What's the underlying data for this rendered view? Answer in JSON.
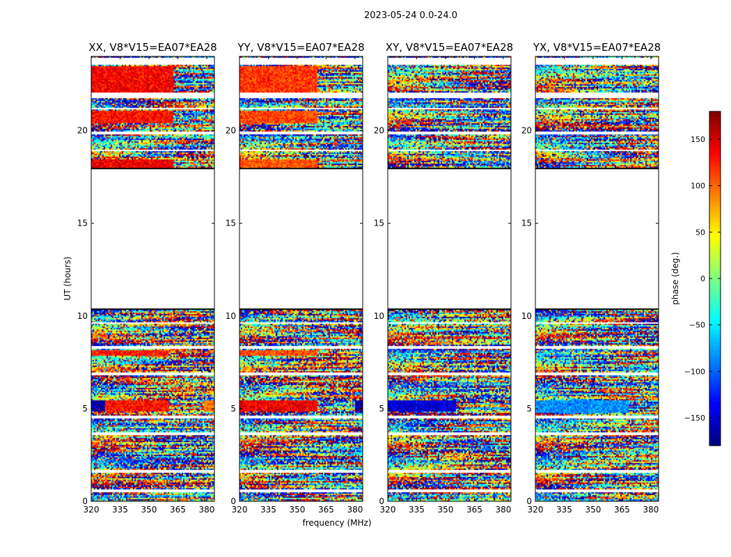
{
  "chart_data": {
    "type": "heatmap",
    "suptitle": "2023-05-24 0.0-24.0",
    "xlabel": "frequency (MHz)",
    "ylabel": "UT (hours)",
    "xlim": [
      320,
      384
    ],
    "ylim": [
      0,
      24
    ],
    "xticks": [
      320,
      335,
      350,
      365,
      380
    ],
    "yticks": [
      0,
      5,
      10,
      15,
      20
    ],
    "colorbar": {
      "label": "phase (deg.)",
      "range": [
        -180,
        180
      ],
      "ticks": [
        150,
        100,
        50,
        0,
        -50,
        -100,
        -150
      ],
      "tick_labels": [
        "150",
        "100",
        "50",
        "0",
        "−50",
        "−100",
        "−150"
      ],
      "colormap": "jet"
    },
    "data_gaps_hours": [
      [
        10.4,
        18.0
      ]
    ],
    "flagged_bands_hours": [
      [
        0.5,
        0.65
      ],
      [
        1.55,
        1.7
      ],
      [
        3.6,
        3.75
      ],
      [
        4.5,
        4.65
      ],
      [
        6.8,
        6.95
      ],
      [
        8.3,
        8.45
      ],
      [
        9.6,
        9.7
      ],
      [
        18.9,
        19.0
      ],
      [
        19.85,
        19.95
      ],
      [
        21.15,
        21.25
      ],
      [
        21.75,
        22.1
      ],
      [
        23.6,
        24.0
      ]
    ],
    "panels": [
      {
        "title": "XX, V8*V15=EA07*EA28",
        "coherent_regions": [
          {
            "t": [
              22.0,
              23.5
            ],
            "f": [
              320,
              362
            ],
            "phase_deg": 135
          },
          {
            "t": [
              20.4,
              21.1
            ],
            "f": [
              320,
              362
            ],
            "phase_deg": 130
          },
          {
            "t": [
              18.0,
              18.5
            ],
            "f": [
              320,
              362
            ],
            "phase_deg": 140
          },
          {
            "t": [
              7.9,
              8.2
            ],
            "f": [
              320,
              360
            ],
            "phase_deg": 125
          },
          {
            "t": [
              4.9,
              5.45
            ],
            "f": [
              320,
              327
            ],
            "phase_deg": -165
          },
          {
            "t": [
              4.9,
              5.45
            ],
            "f": [
              327,
              360
            ],
            "phase_deg": 130
          },
          {
            "t": [
              4.9,
              5.45
            ],
            "f": [
              378,
              384
            ],
            "phase_deg": 95
          }
        ]
      },
      {
        "title": "YY, V8*V15=EA07*EA28",
        "coherent_regions": [
          {
            "t": [
              22.0,
              23.5
            ],
            "f": [
              320,
              360
            ],
            "phase_deg": 115
          },
          {
            "t": [
              20.4,
              21.1
            ],
            "f": [
              320,
              360
            ],
            "phase_deg": 110
          },
          {
            "t": [
              18.0,
              18.5
            ],
            "f": [
              320,
              360
            ],
            "phase_deg": 105
          },
          {
            "t": [
              7.9,
              8.2
            ],
            "f": [
              320,
              360
            ],
            "phase_deg": 110
          },
          {
            "t": [
              4.9,
              5.45
            ],
            "f": [
              320,
              360
            ],
            "phase_deg": 140
          },
          {
            "t": [
              4.9,
              5.45
            ],
            "f": [
              380,
              384
            ],
            "phase_deg": -165
          }
        ]
      },
      {
        "title": "XY, V8*V15=EA07*EA28",
        "coherent_regions": [
          {
            "t": [
              4.9,
              5.45
            ],
            "f": [
              320,
              355
            ],
            "phase_deg": -150
          }
        ]
      },
      {
        "title": "YX, V8*V15=EA07*EA28",
        "coherent_regions": [
          {
            "t": [
              4.8,
              5.45
            ],
            "f": [
              320,
              368
            ],
            "phase_deg": -85
          }
        ]
      }
    ]
  }
}
